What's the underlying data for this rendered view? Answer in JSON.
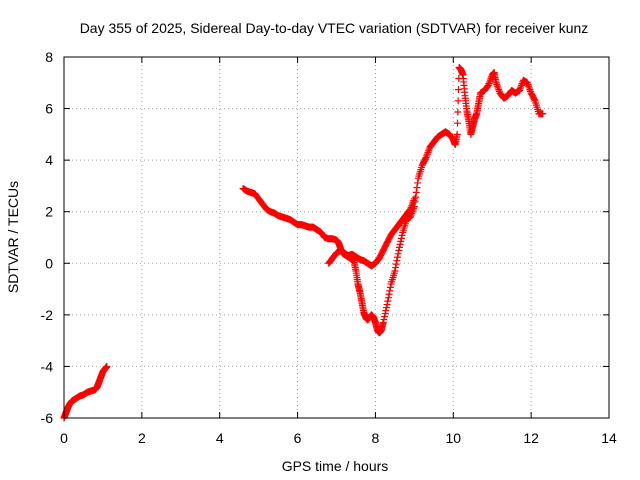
{
  "chart_data": {
    "type": "scatter",
    "title": "Day 355 of 2025, Sidereal Day-to-day VTEC variation (SDTVAR) for receiver kunz",
    "xlabel": "GPS time / hours",
    "ylabel": "SDTVAR / TECUs",
    "xlim": [
      0,
      14
    ],
    "ylim": [
      -6,
      8
    ],
    "xticks": [
      0,
      2,
      4,
      6,
      8,
      10,
      12,
      14
    ],
    "yticks": [
      -6,
      -4,
      -2,
      0,
      2,
      4,
      6,
      8
    ],
    "grid": true,
    "marker": "plus",
    "color": "#ff0000",
    "segments": [
      {
        "x": [
          0.0,
          0.05,
          0.1,
          0.15,
          0.2,
          0.25,
          0.3,
          0.4,
          0.5,
          0.6,
          0.7,
          0.8,
          0.85,
          0.9,
          0.95,
          1.0,
          1.05,
          1.1
        ],
        "y": [
          -6.0,
          -5.8,
          -5.6,
          -5.45,
          -5.35,
          -5.3,
          -5.25,
          -5.15,
          -5.1,
          -5.0,
          -4.95,
          -4.9,
          -4.8,
          -4.6,
          -4.4,
          -4.2,
          -4.1,
          -4.0
        ]
      },
      {
        "x": [
          4.6,
          4.7,
          4.8,
          4.9,
          5.0,
          5.1,
          5.2,
          5.3,
          5.4,
          5.5,
          5.6,
          5.7,
          5.8,
          5.9,
          6.0,
          6.1,
          6.2,
          6.3,
          6.4,
          6.5,
          6.6,
          6.7,
          6.8,
          6.9,
          7.0,
          7.05,
          7.1,
          7.15,
          7.2,
          7.25,
          7.3,
          7.35,
          7.4,
          7.45,
          7.5,
          7.55,
          7.6,
          7.65,
          7.7,
          7.75,
          7.8,
          7.85,
          7.9,
          7.95,
          8.0,
          8.05,
          8.1,
          8.15,
          8.2,
          8.3,
          8.4,
          8.5,
          8.6,
          8.7,
          8.8,
          8.9,
          9.0,
          9.1,
          9.2,
          9.3,
          9.4,
          9.5,
          9.6,
          9.7,
          9.8,
          9.9,
          10.0,
          10.05,
          10.1,
          10.15,
          10.2,
          10.25,
          10.3,
          10.35,
          10.4,
          10.45,
          10.5,
          10.55,
          10.6,
          10.65,
          10.7,
          10.8,
          10.9,
          11.0,
          11.05,
          11.1,
          11.2,
          11.3,
          11.4,
          11.5,
          11.6,
          11.7,
          11.8,
          11.9,
          12.0,
          12.1,
          12.2,
          12.3
        ],
        "y": [
          2.9,
          2.8,
          2.75,
          2.7,
          2.5,
          2.3,
          2.1,
          2.0,
          1.95,
          1.85,
          1.8,
          1.75,
          1.7,
          1.6,
          1.5,
          1.5,
          1.45,
          1.4,
          1.4,
          1.3,
          1.2,
          1.0,
          0.95,
          0.95,
          0.9,
          0.8,
          0.6,
          0.4,
          0.35,
          0.3,
          0.25,
          0.2,
          0.15,
          0.1,
          -0.3,
          -0.8,
          -1.1,
          -1.5,
          -1.9,
          -2.1,
          -2.2,
          -2.1,
          -2.0,
          -2.1,
          -2.3,
          -2.6,
          -2.7,
          -2.6,
          -2.3,
          -1.6,
          -0.8,
          -0.3,
          0.5,
          1.2,
          1.7,
          1.8,
          2.2,
          3.3,
          3.8,
          4.1,
          4.5,
          4.7,
          4.9,
          5.0,
          5.1,
          5.0,
          4.8,
          4.6,
          5.0,
          7.6,
          7.5,
          7.3,
          6.5,
          5.9,
          5.5,
          5.0,
          5.3,
          5.6,
          5.8,
          6.2,
          6.6,
          6.7,
          6.9,
          7.3,
          7.4,
          7.0,
          6.6,
          6.4,
          6.5,
          6.7,
          6.6,
          6.7,
          7.1,
          7.0,
          6.6,
          6.3,
          5.8,
          5.8
        ]
      },
      {
        "x": [
          6.8,
          6.9,
          7.0,
          7.1,
          7.2,
          7.3,
          7.4,
          7.5,
          7.6,
          7.7,
          7.8,
          7.9,
          8.0,
          8.1,
          8.2,
          8.3,
          8.4,
          8.5,
          8.6,
          8.7,
          8.8,
          8.9,
          9.0
        ],
        "y": [
          0.0,
          0.2,
          0.4,
          0.5,
          0.4,
          0.3,
          0.35,
          0.25,
          0.15,
          0.1,
          0.0,
          -0.1,
          0.0,
          0.2,
          0.5,
          0.8,
          1.1,
          1.3,
          1.5,
          1.7,
          1.9,
          2.1,
          2.5
        ]
      }
    ]
  }
}
